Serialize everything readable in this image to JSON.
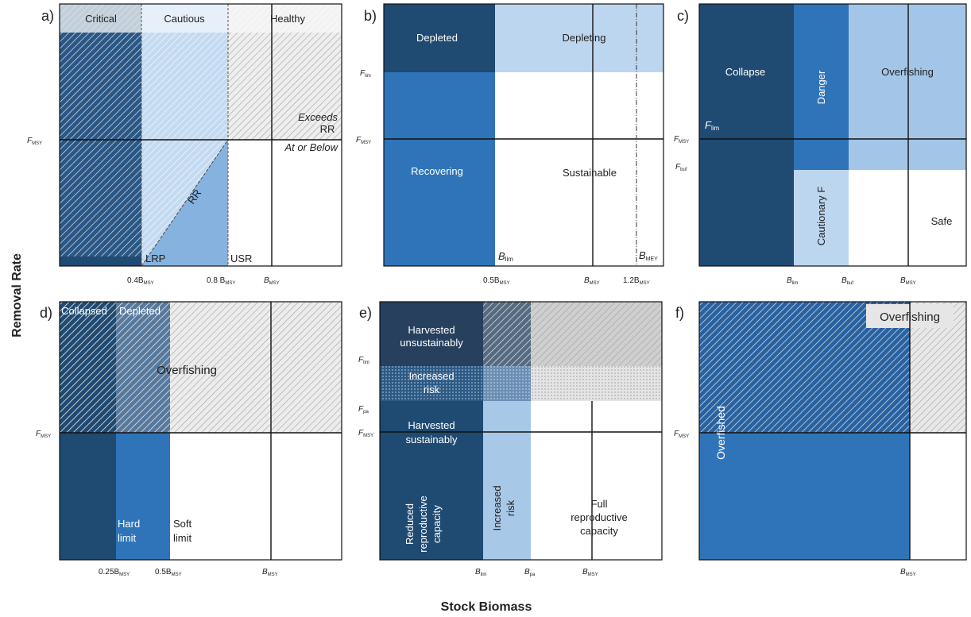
{
  "colors": {
    "dark": "#1f4a72",
    "medium": "#2f74b8",
    "light": "#a8c8e8",
    "paler": "#c2d8ef",
    "grey": "#d6d6d6",
    "navy": "#26405e"
  },
  "axis": {
    "y_label": "Removal Rate",
    "x_label": "Stock Biomass"
  },
  "panel_a": {
    "letter": "a)",
    "zone_critical": "Critical",
    "zone_cautious": "Cautious",
    "zone_healthy": "Healthy",
    "exceeds_1": "Exceeds",
    "exceeds_2": "RR",
    "at_or_below": "At or Below",
    "rr": "RR",
    "lrp": "LRP",
    "usr": "USR",
    "y_fmsy_main": "F",
    "y_fmsy_sub": "MSY",
    "x1_main": "0.4B",
    "x1_sub": "MSY",
    "x2_main": "0.8 B",
    "x2_sub": "MSY",
    "x3_main": "B",
    "x3_sub": "MSY"
  },
  "panel_b": {
    "letter": "b)",
    "depleted": "Depleted",
    "depleting": "Depleting",
    "recovering": "Recovering",
    "sustainable": "Sustainable",
    "blim_main": "B",
    "blim_sub": "lim",
    "bmey_main": "B",
    "bmey_sub": "MEY",
    "y_flim_main": "F",
    "y_flim_sub": "lim",
    "y_fmsy_main": "F",
    "y_fmsy_sub": "MSY",
    "x1_main": "0.5B",
    "x1_sub": "MSY",
    "x2_main": "B",
    "x2_sub": "MSY",
    "x3_main": "1.2B",
    "x3_sub": "MSY"
  },
  "panel_c": {
    "letter": "c)",
    "collapse": "Collapse",
    "danger": "Danger",
    "overfishing": "Overfishing",
    "cautionary": "Cautionary F",
    "safe": "Safe",
    "flim_main": "F",
    "flim_sub": "lim",
    "y_fmsy_main": "F",
    "y_fmsy_sub": "MSY",
    "y_fbuf_main": "F",
    "y_fbuf_sub": "buf",
    "x1_main": "B",
    "x1_sub": "lim",
    "x2_main": "B",
    "x2_sub": "buf",
    "x3_main": "B",
    "x3_sub": "MSY"
  },
  "panel_d": {
    "letter": "d)",
    "collapsed": "Collapsed",
    "depleted": "Depleted",
    "overfishing": "Overfishing",
    "hard_1": "Hard",
    "hard_2": "limit",
    "soft_1": "Soft",
    "soft_2": "limit",
    "y_fmsy_main": "F",
    "y_fmsy_sub": "MSY",
    "x1_main": "0.25B",
    "x1_sub": "MSY",
    "x2_main": "0.5B",
    "x2_sub": "MSY",
    "x3_main": "B",
    "x3_sub": "MSY"
  },
  "panel_e": {
    "letter": "e)",
    "harv_unsus_1": "Harvested",
    "harv_unsus_2": "unsustainably",
    "inc_risk_1": "Increased",
    "inc_risk_2": "risk",
    "harv_sus_1": "Harvested",
    "harv_sus_2": "sustainably",
    "reduced_1": "Reduced",
    "reduced_2": "reproductive",
    "reduced_3": "capacity",
    "inc_risk_v1": "Increased",
    "inc_risk_v2": "risk",
    "full_1": "Full",
    "full_2": "reproductive",
    "full_3": "capacity",
    "y_flim_main": "F",
    "y_flim_sub": "lim",
    "y_fpa_main": "F",
    "y_fpa_sub": "pa",
    "y_fmsy_main": "F",
    "y_fmsy_sub": "MSY",
    "x1_main": "B",
    "x1_sub": "lim",
    "x2_main": "B",
    "x2_sub": "pa",
    "x3_main": "B",
    "x3_sub": "MSY"
  },
  "panel_f": {
    "letter": "f)",
    "overfishing": "Overfishing",
    "overfished": "Overfished",
    "y_fmsy_main": "F",
    "y_fmsy_sub": "MSY",
    "x1_main": "B",
    "x1_sub": "MSY"
  }
}
